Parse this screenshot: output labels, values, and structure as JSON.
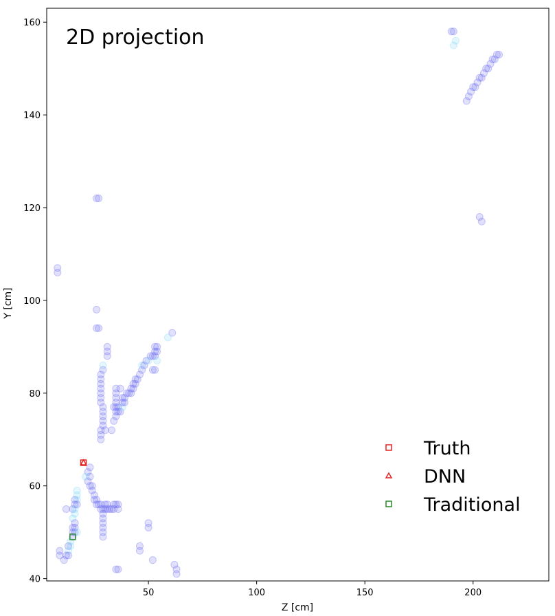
{
  "chart_data": {
    "type": "scatter",
    "title": "2D projection",
    "xlabel": "Z [cm]",
    "ylabel": "Y [cm]",
    "xlim": [
      3,
      235
    ],
    "ylim": [
      39.5,
      163
    ],
    "xticks": [
      50,
      100,
      150,
      200
    ],
    "yticks": [
      40,
      60,
      80,
      100,
      120,
      140,
      160
    ],
    "grid": false,
    "legend_position": "lower-right",
    "hit_colors": {
      "blue": "#6b6bf0",
      "cyan": "#7fd8f5"
    },
    "hits": [
      [
        190,
        158,
        "b"
      ],
      [
        191,
        158,
        "b"
      ],
      [
        191,
        155,
        "c"
      ],
      [
        192,
        156,
        "c"
      ],
      [
        197,
        143,
        "b"
      ],
      [
        198,
        144,
        "b"
      ],
      [
        199,
        145,
        "b"
      ],
      [
        200,
        146,
        "b"
      ],
      [
        201,
        146,
        "b"
      ],
      [
        202,
        147,
        "b"
      ],
      [
        203,
        148,
        "b"
      ],
      [
        204,
        148,
        "b"
      ],
      [
        205,
        149,
        "b"
      ],
      [
        206,
        150,
        "b"
      ],
      [
        207,
        150,
        "b"
      ],
      [
        208,
        151,
        "b"
      ],
      [
        209,
        152,
        "b"
      ],
      [
        210,
        152,
        "b"
      ],
      [
        211,
        153,
        "b"
      ],
      [
        212,
        153,
        "b"
      ],
      [
        203,
        118,
        "b"
      ],
      [
        204,
        117,
        "b"
      ],
      [
        26,
        122,
        "b"
      ],
      [
        27,
        122,
        "b"
      ],
      [
        8,
        107,
        "b"
      ],
      [
        8,
        106,
        "b"
      ],
      [
        26,
        98,
        "b"
      ],
      [
        26,
        94,
        "b"
      ],
      [
        27,
        94,
        "b"
      ],
      [
        31,
        90,
        "b"
      ],
      [
        31,
        89,
        "b"
      ],
      [
        31,
        88,
        "b"
      ],
      [
        61,
        93,
        "b"
      ],
      [
        59,
        92,
        "c"
      ],
      [
        29,
        86,
        "c"
      ],
      [
        29,
        85,
        "b"
      ],
      [
        28,
        84,
        "b"
      ],
      [
        28,
        83,
        "b"
      ],
      [
        28,
        82,
        "b"
      ],
      [
        28,
        81,
        "b"
      ],
      [
        28,
        80,
        "b"
      ],
      [
        28,
        79,
        "b"
      ],
      [
        28,
        78,
        "b"
      ],
      [
        29,
        77,
        "b"
      ],
      [
        29,
        76,
        "b"
      ],
      [
        29,
        75,
        "b"
      ],
      [
        29,
        74,
        "b"
      ],
      [
        29,
        73,
        "b"
      ],
      [
        28,
        72,
        "b"
      ],
      [
        30,
        72,
        "b"
      ],
      [
        33,
        72,
        "b"
      ],
      [
        28,
        71,
        "b"
      ],
      [
        28,
        70,
        "b"
      ],
      [
        34,
        74,
        "b"
      ],
      [
        35,
        75,
        "b"
      ],
      [
        35,
        76,
        "b"
      ],
      [
        36,
        76,
        "b"
      ],
      [
        37,
        76,
        "b"
      ],
      [
        36,
        77,
        "b"
      ],
      [
        38,
        77,
        "c"
      ],
      [
        38,
        78,
        "b"
      ],
      [
        39,
        78,
        "b"
      ],
      [
        39,
        79,
        "b"
      ],
      [
        40,
        80,
        "b"
      ],
      [
        41,
        80,
        "b"
      ],
      [
        42,
        80,
        "b"
      ],
      [
        42,
        81,
        "b"
      ],
      [
        43,
        81,
        "b"
      ],
      [
        43,
        82,
        "b"
      ],
      [
        44,
        82,
        "b"
      ],
      [
        44,
        83,
        "b"
      ],
      [
        45,
        83,
        "b"
      ],
      [
        46,
        84,
        "b"
      ],
      [
        47,
        85,
        "b"
      ],
      [
        47,
        86,
        "c"
      ],
      [
        48,
        86,
        "b"
      ],
      [
        49,
        87,
        "b"
      ],
      [
        50,
        87,
        "c"
      ],
      [
        51,
        88,
        "b"
      ],
      [
        52,
        88,
        "b"
      ],
      [
        53,
        88,
        "b"
      ],
      [
        53,
        89,
        "b"
      ],
      [
        54,
        89,
        "b"
      ],
      [
        54,
        90,
        "b"
      ],
      [
        53,
        90,
        "b"
      ],
      [
        52,
        85,
        "b"
      ],
      [
        53,
        85,
        "b"
      ],
      [
        54,
        87,
        "c"
      ],
      [
        35,
        81,
        "b"
      ],
      [
        35,
        80,
        "b"
      ],
      [
        35,
        79,
        "b"
      ],
      [
        35,
        78,
        "b"
      ],
      [
        35,
        77,
        "b"
      ],
      [
        34,
        77,
        "b"
      ],
      [
        37,
        81,
        "b"
      ],
      [
        38,
        79,
        "b"
      ],
      [
        23,
        64,
        "b"
      ],
      [
        22,
        63,
        "b"
      ],
      [
        23,
        62,
        "b"
      ],
      [
        22,
        61,
        "b"
      ],
      [
        21,
        62,
        "c"
      ],
      [
        23,
        60,
        "b"
      ],
      [
        24,
        60,
        "b"
      ],
      [
        24,
        59,
        "b"
      ],
      [
        25,
        58,
        "b"
      ],
      [
        25,
        57,
        "b"
      ],
      [
        26,
        57,
        "b"
      ],
      [
        26,
        56,
        "b"
      ],
      [
        27,
        56,
        "b"
      ],
      [
        28,
        56,
        "b"
      ],
      [
        28,
        55,
        "b"
      ],
      [
        29,
        55,
        "b"
      ],
      [
        29,
        54,
        "b"
      ],
      [
        30,
        55,
        "b"
      ],
      [
        31,
        55,
        "b"
      ],
      [
        32,
        55,
        "b"
      ],
      [
        33,
        55,
        "b"
      ],
      [
        34,
        55,
        "b"
      ],
      [
        34,
        56,
        "b"
      ],
      [
        35,
        56,
        "b"
      ],
      [
        36,
        56,
        "b"
      ],
      [
        36,
        55,
        "b"
      ],
      [
        30,
        56,
        "b"
      ],
      [
        31,
        56,
        "b"
      ],
      [
        29,
        53,
        "b"
      ],
      [
        29,
        52,
        "b"
      ],
      [
        29,
        51,
        "b"
      ],
      [
        29,
        50,
        "b"
      ],
      [
        29,
        49,
        "b"
      ],
      [
        17,
        59,
        "c"
      ],
      [
        17,
        58,
        "c"
      ],
      [
        16,
        57,
        "b"
      ],
      [
        17,
        57,
        "c"
      ],
      [
        16,
        56,
        "b"
      ],
      [
        17,
        56,
        "b"
      ],
      [
        15,
        55,
        "b"
      ],
      [
        16,
        55,
        "c"
      ],
      [
        16,
        54,
        "c"
      ],
      [
        15,
        53,
        "c"
      ],
      [
        16,
        52,
        "b"
      ],
      [
        15,
        51,
        "b"
      ],
      [
        16,
        51,
        "b"
      ],
      [
        15,
        50,
        "b"
      ],
      [
        16,
        50,
        "b"
      ],
      [
        17,
        50,
        "c"
      ],
      [
        15,
        49,
        "b"
      ],
      [
        14,
        48,
        "c"
      ],
      [
        14,
        47,
        "c"
      ],
      [
        13,
        47,
        "b"
      ],
      [
        13,
        46,
        "c"
      ],
      [
        12,
        45,
        "b"
      ],
      [
        13,
        45,
        "b"
      ],
      [
        11,
        44,
        "b"
      ],
      [
        9,
        46,
        "b"
      ],
      [
        9,
        45,
        "b"
      ],
      [
        12,
        55,
        "b"
      ],
      [
        35,
        42,
        "b"
      ],
      [
        36,
        42,
        "b"
      ],
      [
        46,
        47,
        "b"
      ],
      [
        46,
        46,
        "b"
      ],
      [
        50,
        52,
        "b"
      ],
      [
        50,
        51,
        "b"
      ],
      [
        52,
        44,
        "b"
      ],
      [
        62,
        43,
        "b"
      ],
      [
        63,
        42,
        "b"
      ],
      [
        63,
        41,
        "b"
      ]
    ],
    "markers": [
      {
        "name": "Truth",
        "shape": "square",
        "color": "#e52222",
        "x": 20,
        "y": 65
      },
      {
        "name": "DNN",
        "shape": "triangle",
        "color": "#e52222",
        "x": 20,
        "y": 65
      },
      {
        "name": "Traditional",
        "shape": "square",
        "color": "#2a8a2a",
        "x": 15,
        "y": 49
      }
    ]
  }
}
